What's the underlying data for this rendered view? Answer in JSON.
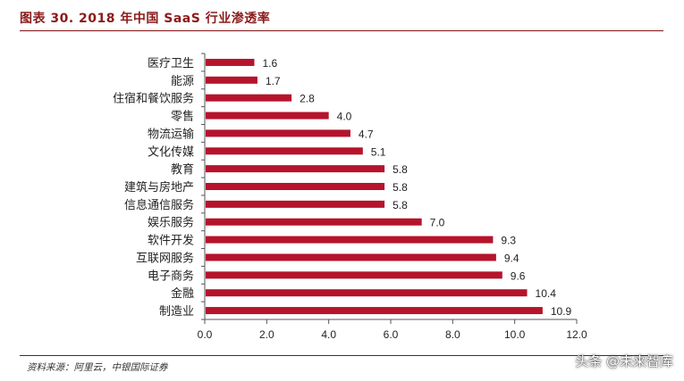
{
  "figure_title": "图表 30. 2018 年中国 SaaS 行业渗透率",
  "source_note": "资料来源：阿里云，中银国际证券",
  "watermark": "头条 @未来智库",
  "colors": {
    "bar": "#b5142c",
    "axis": "#555555",
    "title_rule": "#7f1212"
  },
  "chart_data": {
    "type": "bar",
    "orientation": "horizontal",
    "categories": [
      "医疗卫生",
      "能源",
      "住宿和餐饮服务",
      "零售",
      "物流运输",
      "文化传媒",
      "教育",
      "建筑与房地产",
      "信息通信服务",
      "娱乐服务",
      "软件开发",
      "互联网服务",
      "电子商务",
      "金融",
      "制造业"
    ],
    "values": [
      1.6,
      1.7,
      2.8,
      4.0,
      4.7,
      5.1,
      5.8,
      5.8,
      5.8,
      7.0,
      9.3,
      9.4,
      9.6,
      10.4,
      10.9
    ],
    "value_labels": [
      "1.6",
      "1.7",
      "2.8",
      "4.0",
      "4.7",
      "5.1",
      "5.8",
      "5.8",
      "5.8",
      "7.0",
      "9.3",
      "9.4",
      "9.6",
      "10.4",
      "10.9"
    ],
    "xlim": [
      0,
      12
    ],
    "xticks": [
      "0.0",
      "2.0",
      "4.0",
      "6.0",
      "8.0",
      "10.0",
      "12.0"
    ],
    "grid": false,
    "title": "",
    "xlabel": "",
    "ylabel": ""
  }
}
